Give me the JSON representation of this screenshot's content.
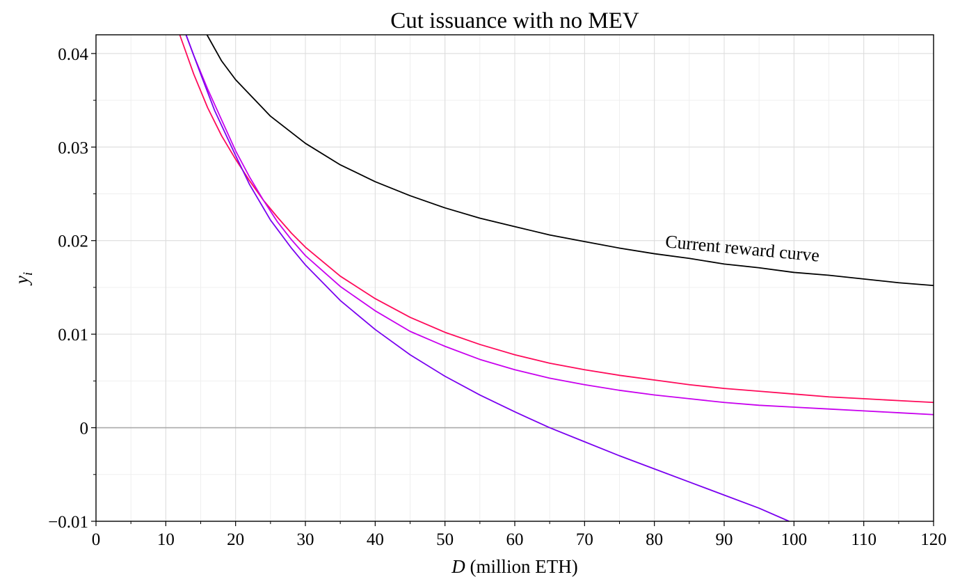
{
  "chart_data": {
    "type": "line",
    "title": "Cut issuance with no MEV",
    "xlabel": {
      "var": "D",
      "text": " (million ETH)"
    },
    "ylabel": {
      "var": "y",
      "sub": "i"
    },
    "xlim": [
      0,
      120
    ],
    "ylim": [
      -0.01,
      0.042
    ],
    "x_ticks": [
      0,
      10,
      20,
      30,
      40,
      50,
      60,
      70,
      80,
      90,
      100,
      110,
      120
    ],
    "x_tick_labels": [
      "0",
      "10",
      "20",
      "30",
      "40",
      "50",
      "60",
      "70",
      "80",
      "90",
      "100",
      "110",
      "120"
    ],
    "y_ticks": [
      -0.01,
      0,
      0.01,
      0.02,
      0.03,
      0.04
    ],
    "y_tick_labels": [
      "−0.01",
      "0",
      "0.01",
      "0.02",
      "0.03",
      "0.04"
    ],
    "x_minor_step": 5,
    "y_minor_step": 0.005,
    "grid": true,
    "zero_line": true,
    "annotation": {
      "text": "Current reward curve",
      "x": 81.5,
      "y": 0.0193,
      "angle_deg": 5.3
    },
    "series": [
      {
        "color": "#000000",
        "x": [
          15.9,
          18,
          20,
          25,
          30,
          35,
          40,
          45,
          50,
          55,
          60,
          65,
          70,
          75,
          80,
          85,
          90,
          95,
          100,
          105,
          110,
          115,
          120
        ],
        "y": [
          0.042,
          0.0392,
          0.0372,
          0.0333,
          0.0304,
          0.0281,
          0.0263,
          0.0248,
          0.0235,
          0.0224,
          0.0215,
          0.0206,
          0.0199,
          0.0192,
          0.0186,
          0.0181,
          0.0175,
          0.0171,
          0.0166,
          0.0163,
          0.0159,
          0.0155,
          0.0152
        ]
      },
      {
        "color": "#ff0a5a",
        "x": [
          12,
          14,
          16,
          18,
          20,
          22,
          24,
          26,
          28,
          30,
          35,
          40,
          45,
          50,
          55,
          60,
          65,
          70,
          75,
          80,
          85,
          90,
          95,
          100,
          105,
          110,
          115,
          120
        ],
        "y": [
          0.042,
          0.0378,
          0.0342,
          0.0312,
          0.0287,
          0.0264,
          0.0243,
          0.0225,
          0.0208,
          0.0193,
          0.0162,
          0.0138,
          0.0118,
          0.0102,
          0.0089,
          0.0078,
          0.0069,
          0.0062,
          0.0056,
          0.0051,
          0.0046,
          0.0042,
          0.0039,
          0.0036,
          0.0033,
          0.0031,
          0.0029,
          0.0027
        ]
      },
      {
        "color": "#c800ee",
        "x": [
          12.9,
          14,
          16,
          18,
          20,
          22,
          24,
          26,
          28,
          30,
          35,
          40,
          45,
          50,
          55,
          60,
          65,
          70,
          75,
          80,
          85,
          90,
          95,
          100,
          105,
          110,
          115,
          120
        ],
        "y": [
          0.042,
          0.0398,
          0.0362,
          0.0329,
          0.0296,
          0.0268,
          0.0243,
          0.022,
          0.0201,
          0.0184,
          0.0151,
          0.0125,
          0.0103,
          0.0087,
          0.0073,
          0.0062,
          0.0053,
          0.0046,
          0.004,
          0.0035,
          0.0031,
          0.0027,
          0.0024,
          0.0022,
          0.002,
          0.0018,
          0.0016,
          0.0014
        ]
      },
      {
        "color": "#7a00f0",
        "x": [
          12.9,
          15,
          17,
          20,
          22,
          25,
          28,
          30,
          35,
          40,
          45,
          50,
          55,
          60,
          65,
          70,
          75,
          80,
          85,
          90,
          95,
          99.3
        ],
        "y": [
          0.042,
          0.0378,
          0.0339,
          0.0291,
          0.026,
          0.0222,
          0.0192,
          0.0174,
          0.0136,
          0.0105,
          0.0078,
          0.0055,
          0.0035,
          0.0017,
          0.0,
          -0.0015,
          -0.003,
          -0.0044,
          -0.0058,
          -0.0072,
          -0.0086,
          -0.01
        ]
      }
    ]
  }
}
